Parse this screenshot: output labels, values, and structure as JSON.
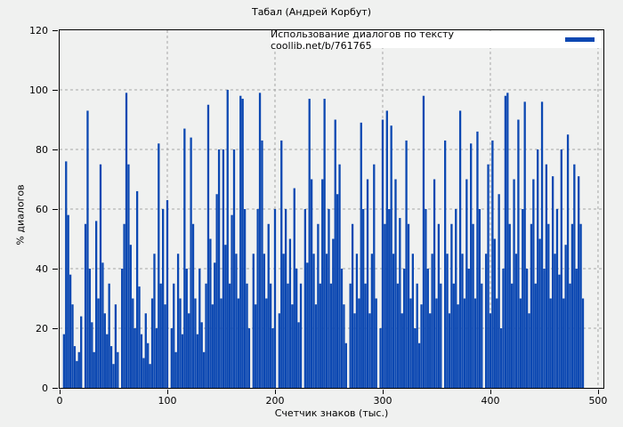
{
  "title": "Табал (Андрей Корбут)",
  "legend": {
    "label": "Использование диалогов по тексту coollib.net/b/761765",
    "swatch_color": "#0c48b2"
  },
  "axes": {
    "x_label": "Счетчик знаков (тыс.)",
    "y_label": "% диалогов",
    "x_ticks": [
      0,
      100,
      200,
      300,
      400,
      500
    ],
    "y_ticks": [
      0,
      20,
      40,
      60,
      80,
      100,
      120
    ],
    "grid": true,
    "grid_color": "#a6a6a6",
    "background_color": "#f0f1f0"
  },
  "chart_data": {
    "type": "bar",
    "subtype": "impulses",
    "title": "Табал (Андрей Корбут)",
    "xlabel": "Счетчик знаков (тыс.)",
    "ylabel": "% диалогов",
    "legend_label": "Использование диалогов по тексту coollib.net/b/761765",
    "legend_position": "top-right-inside-white-box",
    "bar_color": "#0c48b2",
    "xlim": [
      0,
      500
    ],
    "ylim": [
      0,
      120
    ],
    "x_start": 4,
    "x_step": 2,
    "values": [
      18,
      76,
      58,
      38,
      28,
      14,
      9,
      12,
      24,
      0,
      55,
      93,
      40,
      22,
      12,
      56,
      30,
      75,
      42,
      25,
      18,
      35,
      14,
      8,
      28,
      12,
      0,
      40,
      55,
      99,
      75,
      48,
      30,
      20,
      66,
      34,
      18,
      10,
      25,
      15,
      8,
      30,
      45,
      20,
      82,
      35,
      60,
      28,
      63,
      0,
      20,
      35,
      12,
      45,
      30,
      18,
      87,
      40,
      25,
      84,
      55,
      30,
      18,
      40,
      22,
      12,
      35,
      95,
      50,
      28,
      42,
      65,
      80,
      30,
      80,
      48,
      100,
      35,
      58,
      80,
      45,
      30,
      98,
      97,
      60,
      35,
      20,
      0,
      45,
      28,
      60,
      99,
      83,
      45,
      30,
      55,
      35,
      20,
      60,
      0,
      25,
      83,
      45,
      60,
      35,
      50,
      28,
      67,
      40,
      22,
      35,
      0,
      60,
      42,
      97,
      70,
      45,
      28,
      55,
      35,
      70,
      97,
      45,
      60,
      35,
      50,
      90,
      65,
      75,
      40,
      28,
      15,
      0,
      35,
      55,
      25,
      45,
      30,
      89,
      60,
      35,
      70,
      25,
      45,
      75,
      30,
      0,
      20,
      90,
      55,
      93,
      60,
      88,
      45,
      70,
      35,
      57,
      25,
      40,
      83,
      55,
      30,
      45,
      20,
      35,
      15,
      28,
      98,
      60,
      40,
      25,
      45,
      70,
      30,
      55,
      35,
      0,
      83,
      45,
      25,
      55,
      35,
      60,
      28,
      93,
      45,
      30,
      70,
      40,
      82,
      55,
      30,
      86,
      60,
      35,
      0,
      45,
      75,
      25,
      83,
      50,
      30,
      65,
      20,
      40,
      98,
      99,
      55,
      35,
      70,
      45,
      90,
      30,
      60,
      96,
      40,
      25,
      55,
      70,
      35,
      80,
      50,
      96,
      40,
      75,
      55,
      30,
      71,
      45,
      60,
      38,
      80,
      30,
      48,
      85,
      35,
      55,
      75,
      40,
      71,
      55,
      30
    ]
  }
}
